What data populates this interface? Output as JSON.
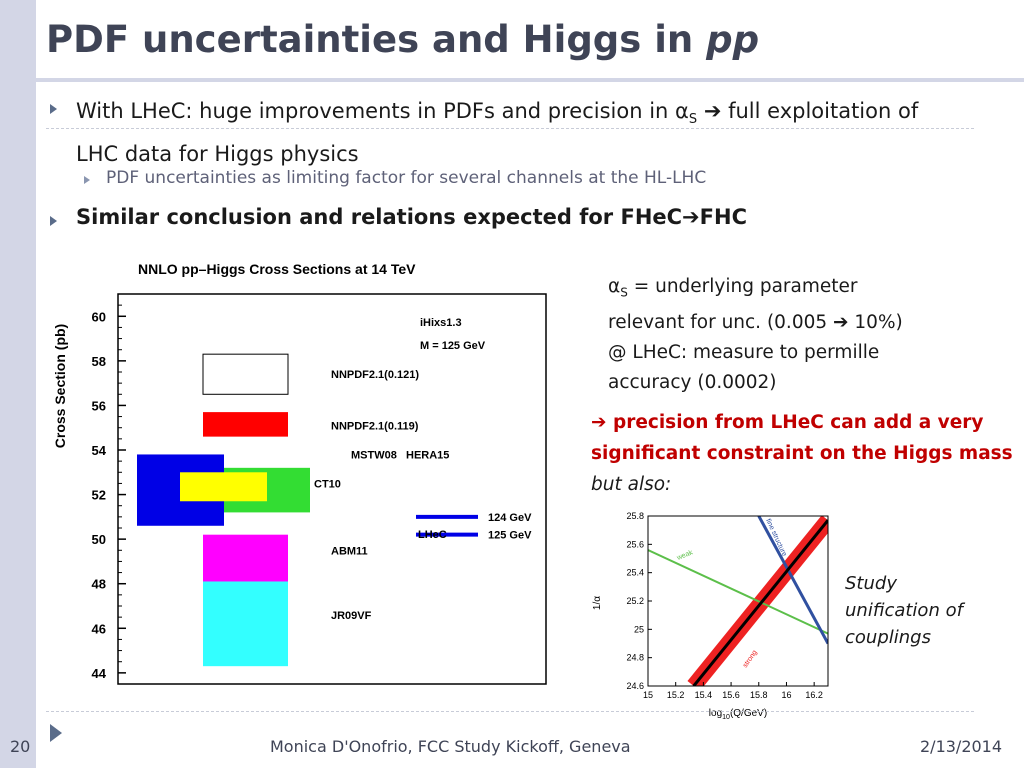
{
  "slide": {
    "title_main": "PDF uncertainties and Higgs in ",
    "title_italic": "pp",
    "bullet1_pre": "With LHeC: huge improvements in PDFs and precision in ",
    "alpha": "α",
    "sub_s": "S",
    "arrow": "➔",
    "bullet1_post": " full exploitation of LHC data for Higgs physics",
    "sub_bullet": "PDF uncertainties as limiting factor for several channels at the HL-LHC",
    "bullet2_pre": "Similar conclusion and relations expected for FHeC",
    "bullet2_post": "FHC",
    "para_line1": " = underlying parameter",
    "para_line2_pre": "relevant for unc.  (0.005 ",
    "para_line2_post": " 10%)",
    "para_line3": "@ LHeC: measure to permille",
    "para_line4": "accuracy (0.0002)",
    "red_text": " precision from LHeC can add a very significant constraint on the Higgs mass ",
    "red_italic": "but also",
    "red_colon": ":",
    "note_line1": "Study",
    "note_line2": "unification of",
    "note_line3": "couplings"
  },
  "footer": {
    "page_number": "20",
    "author": "Monica D'Onofrio, FCC Study Kickoff, Geneva",
    "date": "2/13/2014"
  },
  "chart_data": [
    {
      "type": "bar",
      "title": "NNLO pp–Higgs Cross Sections at 14 TeV",
      "ylabel": "Cross Section (pb)",
      "ylim": [
        43.5,
        61
      ],
      "yticks": [
        44,
        46,
        48,
        50,
        52,
        54,
        56,
        58,
        60
      ],
      "annotation_line1": "iHixs1.3",
      "annotation_line2": "M = 125 GeV",
      "series": [
        {
          "name": "NNPDF2.1(0.121)",
          "low": 56.5,
          "high": 58.3,
          "color": "#ffffff"
        },
        {
          "name": "NNPDF2.1(0.119)",
          "low": 54.6,
          "high": 55.7,
          "color": "#ff0000"
        },
        {
          "name": "MSTW08",
          "low": 50.6,
          "high": 53.8,
          "color": "#0000e6"
        },
        {
          "name": "CT10",
          "low": 51.2,
          "high": 53.2,
          "color": "#33dd33"
        },
        {
          "name": "HERA15",
          "low": 51.7,
          "high": 53.0,
          "color": "#ffff00"
        },
        {
          "name": "ABM11",
          "low": 48.1,
          "high": 50.2,
          "color": "#ff00ff"
        },
        {
          "name": "JR09VF",
          "low": 44.3,
          "high": 48.1,
          "color": "#33ffff"
        }
      ],
      "lhec_label": "LHeC",
      "lhec_lines": [
        {
          "name": "124 GeV",
          "value": 51.0
        },
        {
          "name": "125 GeV",
          "value": 50.2
        }
      ]
    },
    {
      "type": "line",
      "xlabel_pre": "log",
      "xlabel_sub": "10",
      "xlabel_post": "(Q/GeV)",
      "ylabel": "1/α",
      "xlim": [
        15,
        16.3
      ],
      "ylim": [
        24.6,
        25.8
      ],
      "xticks": [
        "15",
        "15.2",
        "15.4",
        "15.6",
        "15.8",
        "16",
        "16.2"
      ],
      "yticks": [
        "24.6",
        "24.8",
        "25",
        "25.2",
        "25.4",
        "25.6",
        "25.8"
      ],
      "series": [
        {
          "name": "weak",
          "color": "#5cbf4a",
          "x": [
            15.0,
            16.3
          ],
          "y": [
            25.56,
            24.97
          ]
        },
        {
          "name": "fine structure",
          "color": "#3050a0",
          "x": [
            15.8,
            16.3
          ],
          "y": [
            25.8,
            24.9
          ]
        },
        {
          "name": "strong",
          "color": "#000000",
          "band_color": "#ee2222",
          "x": [
            15.33,
            16.3
          ],
          "y": [
            24.6,
            25.77
          ]
        }
      ]
    }
  ]
}
